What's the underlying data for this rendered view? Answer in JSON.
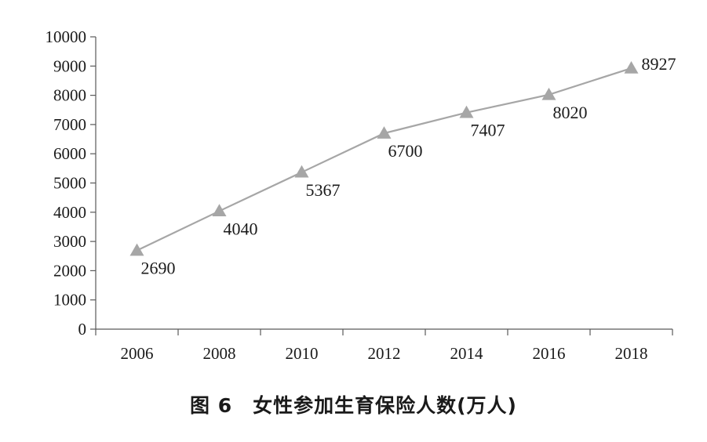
{
  "chart_data": {
    "type": "line",
    "title": "图 6　女性参加生育保险人数(万人)",
    "categories": [
      "2006",
      "2008",
      "2010",
      "2012",
      "2014",
      "2016",
      "2018"
    ],
    "series": [
      {
        "values": [
          2690,
          4040,
          5367,
          6700,
          7407,
          8020,
          8927
        ]
      }
    ],
    "data_labels": [
      "2690",
      "4040",
      "5367",
      "6700",
      "7407",
      "8020",
      "8927"
    ],
    "y_ticks": [
      "0",
      "1000",
      "2000",
      "3000",
      "4000",
      "5000",
      "6000",
      "7000",
      "8000",
      "9000",
      "10000"
    ],
    "ylim": [
      0,
      10000
    ],
    "grid": false,
    "legend": "none",
    "marker": "triangle",
    "colors": {
      "line": "#a6a6a6",
      "marker": "#a6a6a6",
      "axis": "#595959",
      "text": "#1a1a1a"
    }
  }
}
